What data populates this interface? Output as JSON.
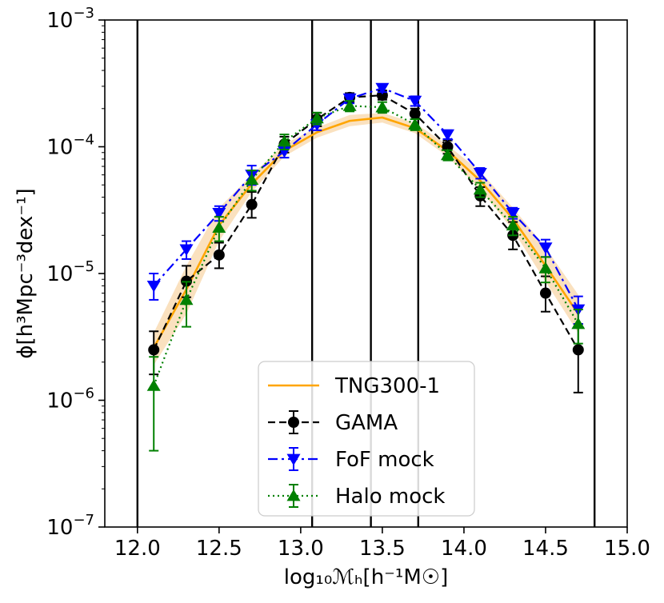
{
  "chart_data": {
    "type": "line",
    "xlabel": "log₁₀ℳₕ[h⁻¹M☉]",
    "ylabel": "ϕ[h³Mpc⁻³dex⁻¹]",
    "xlim": [
      11.8,
      15.0
    ],
    "ylim": [
      1e-07,
      0.001
    ],
    "yscale": "log",
    "x_ticks": [
      {
        "value": 12.0,
        "label": "12.0"
      },
      {
        "value": 12.5,
        "label": "12.5"
      },
      {
        "value": 13.0,
        "label": "13.0"
      },
      {
        "value": 13.5,
        "label": "13.5"
      },
      {
        "value": 14.0,
        "label": "14.0"
      },
      {
        "value": 14.5,
        "label": "14.5"
      },
      {
        "value": 15.0,
        "label": "15.0"
      }
    ],
    "y_ticks": [
      {
        "value": 1e-07,
        "base": "10",
        "exp": "−7"
      },
      {
        "value": 1e-06,
        "base": "10",
        "exp": "−6"
      },
      {
        "value": 1e-05,
        "base": "10",
        "exp": "−5"
      },
      {
        "value": 0.0001,
        "base": "10",
        "exp": "−4"
      },
      {
        "value": 0.001,
        "base": "10",
        "exp": "−3"
      }
    ],
    "vlines": [
      12.0,
      13.07,
      13.43,
      13.72,
      14.8
    ],
    "band": {
      "name": "TNG300-1",
      "color": "#f5c88a",
      "x": [
        12.1,
        12.3,
        12.5,
        12.7,
        12.9,
        13.1,
        13.3,
        13.5,
        13.7,
        13.9,
        14.1,
        14.3,
        14.5,
        14.7
      ],
      "lower": [
        1.9e-06,
        4.8e-06,
        1.8e-05,
        4.4e-05,
        8.4e-05,
        0.000118,
        0.000145,
        0.000155,
        0.000128,
        8.4e-05,
        4.6e-05,
        2.2e-05,
        8.6e-06,
        3.4e-06
      ],
      "upper": [
        3.4e-06,
        1.15e-05,
        3.3e-05,
        6e-05,
        0.000105,
        0.000142,
        0.000178,
        0.000185,
        0.000154,
        0.000103,
        6.4e-05,
        3.3e-05,
        1.6e-05,
        6.8e-06
      ]
    },
    "series": [
      {
        "name": "TNG300-1",
        "color": "#ffa500",
        "style": "solid",
        "marker": "none",
        "x": [
          12.1,
          12.3,
          12.5,
          12.7,
          12.9,
          13.1,
          13.3,
          13.5,
          13.7,
          13.9,
          14.1,
          14.3,
          14.5,
          14.7
        ],
        "values": [
          2.6e-06,
          7.5e-06,
          2.4e-05,
          5.1e-05,
          9.3e-05,
          0.00013,
          0.00016,
          0.00017,
          0.00014,
          9.3e-05,
          5.4e-05,
          2.7e-05,
          1.15e-05,
          4.8e-06
        ]
      },
      {
        "name": "GAMA",
        "color": "#000000",
        "style": "dashed",
        "marker": "circle",
        "x": [
          12.1,
          12.3,
          12.5,
          12.7,
          12.9,
          13.1,
          13.3,
          13.5,
          13.7,
          13.9,
          14.1,
          14.3,
          14.5,
          14.7
        ],
        "values": [
          2.5e-06,
          8.7e-06,
          1.4e-05,
          3.5e-05,
          0.000105,
          0.000165,
          0.000245,
          0.000255,
          0.000182,
          0.0001,
          4.1e-05,
          2e-05,
          7e-06,
          2.5e-06
        ],
        "err_lo": [
          1.6e-06,
          6.5e-06,
          1.1e-05,
          2.75e-05,
          9e-05,
          0.000145,
          0.000225,
          0.000235,
          0.000165,
          8.8e-05,
          3.4e-05,
          1.55e-05,
          5e-06,
          1.15e-06
        ],
        "err_hi": [
          3.5e-06,
          1.15e-05,
          1.75e-05,
          4.4e-05,
          0.00012,
          0.000185,
          0.000265,
          0.000278,
          0.0002,
          0.000112,
          4.8e-05,
          2.55e-05,
          9.5e-06,
          4e-06
        ]
      },
      {
        "name": "FoF mock",
        "color": "#0000ff",
        "style": "dashdot",
        "marker": "triangle-down",
        "x": [
          12.1,
          12.3,
          12.5,
          12.7,
          12.9,
          13.1,
          13.3,
          13.5,
          13.7,
          13.9,
          14.1,
          14.3,
          14.5,
          14.7
        ],
        "values": [
          8e-06,
          1.55e-05,
          3e-05,
          6e-05,
          9.2e-05,
          0.00015,
          0.00024,
          0.00029,
          0.00023,
          0.000125,
          6.2e-05,
          3e-05,
          1.6e-05,
          5.2e-06
        ],
        "err_lo": [
          6.2e-06,
          1.3e-05,
          2.6e-05,
          5e-05,
          8.2e-05,
          0.000135,
          0.00022,
          0.00027,
          0.00021,
          0.000115,
          5.6e-05,
          2.7e-05,
          1.35e-05,
          4e-06
        ],
        "err_hi": [
          1e-05,
          1.8e-05,
          3.4e-05,
          7.1e-05,
          0.000102,
          0.000165,
          0.00026,
          0.00031,
          0.00025,
          0.000135,
          6.8e-05,
          3.3e-05,
          1.85e-05,
          6.6e-06
        ]
      },
      {
        "name": "Halo mock",
        "color": "#008000",
        "style": "dotted",
        "marker": "triangle-up",
        "x": [
          12.1,
          12.3,
          12.5,
          12.7,
          12.9,
          13.1,
          13.3,
          13.5,
          13.7,
          13.9,
          14.1,
          14.3,
          14.5,
          14.7
        ],
        "values": [
          1.3e-06,
          6.2e-06,
          2.3e-05,
          5.5e-05,
          0.00011,
          0.000168,
          0.00021,
          0.000205,
          0.00015,
          8.6e-05,
          4.6e-05,
          2.4e-05,
          1.1e-05,
          4e-06
        ],
        "err_lo": [
          4e-07,
          3.8e-06,
          1.8e-05,
          4.5e-05,
          9.5e-05,
          0.00015,
          0.00019,
          0.000185,
          0.000135,
          7.8e-05,
          4e-05,
          2e-05,
          8.5e-06,
          2.8e-06
        ],
        "err_hi": [
          2.2e-06,
          8.6e-06,
          2.8e-05,
          6.5e-05,
          0.000125,
          0.000186,
          0.00023,
          0.000225,
          0.000165,
          9.4e-05,
          5.2e-05,
          2.8e-05,
          1.35e-05,
          5.2e-06
        ]
      }
    ],
    "legend": {
      "placement": "lower-center",
      "entries": [
        "TNG300-1",
        "GAMA",
        "FoF mock",
        "Halo mock"
      ]
    }
  }
}
